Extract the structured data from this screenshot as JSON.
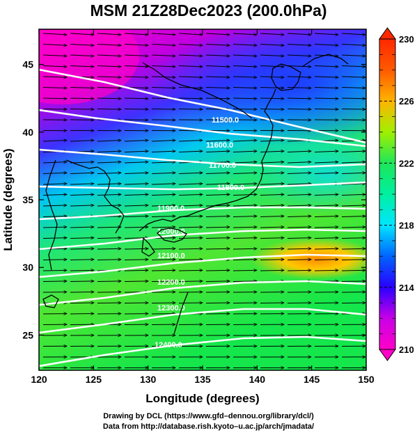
{
  "title": "MSM 21Z28Dec2023 (200.0hPa)",
  "map": {
    "xlabel": "Longitude (degrees)",
    "ylabel": "Latitude  (degrees)",
    "x_ticks": [
      "120",
      "125",
      "130",
      "135",
      "140",
      "145",
      "150"
    ],
    "y_ticks": [
      "25",
      "30",
      "35",
      "40",
      "45"
    ],
    "lon_range": [
      120,
      150
    ],
    "lat_range": [
      22.4,
      47.6
    ],
    "contour_labels": [
      "11500.0",
      "11600.0",
      "11700.0",
      "11800.0",
      "11900.0",
      "12000.0",
      "12100.0",
      "12200.0",
      "12300.0",
      "12400.0"
    ]
  },
  "colorbar": {
    "ticks": [
      "230",
      "226",
      "222",
      "218",
      "214",
      "210"
    ],
    "range": [
      210,
      230
    ],
    "colors": [
      "#ff00c8",
      "#c800e6",
      "#2a00ff",
      "#0064ff",
      "#00e6ff",
      "#00f0a0",
      "#1ee65a",
      "#a0f000",
      "#ffb400",
      "#ff5a00",
      "#ff2800"
    ]
  },
  "credits": [
    "Drawing by DCL (https://www.gfd–dennou.org/library/dcl/)",
    "Data from http://database.rish.kyoto–u.ac.jp/arch/jmadata/"
  ]
}
